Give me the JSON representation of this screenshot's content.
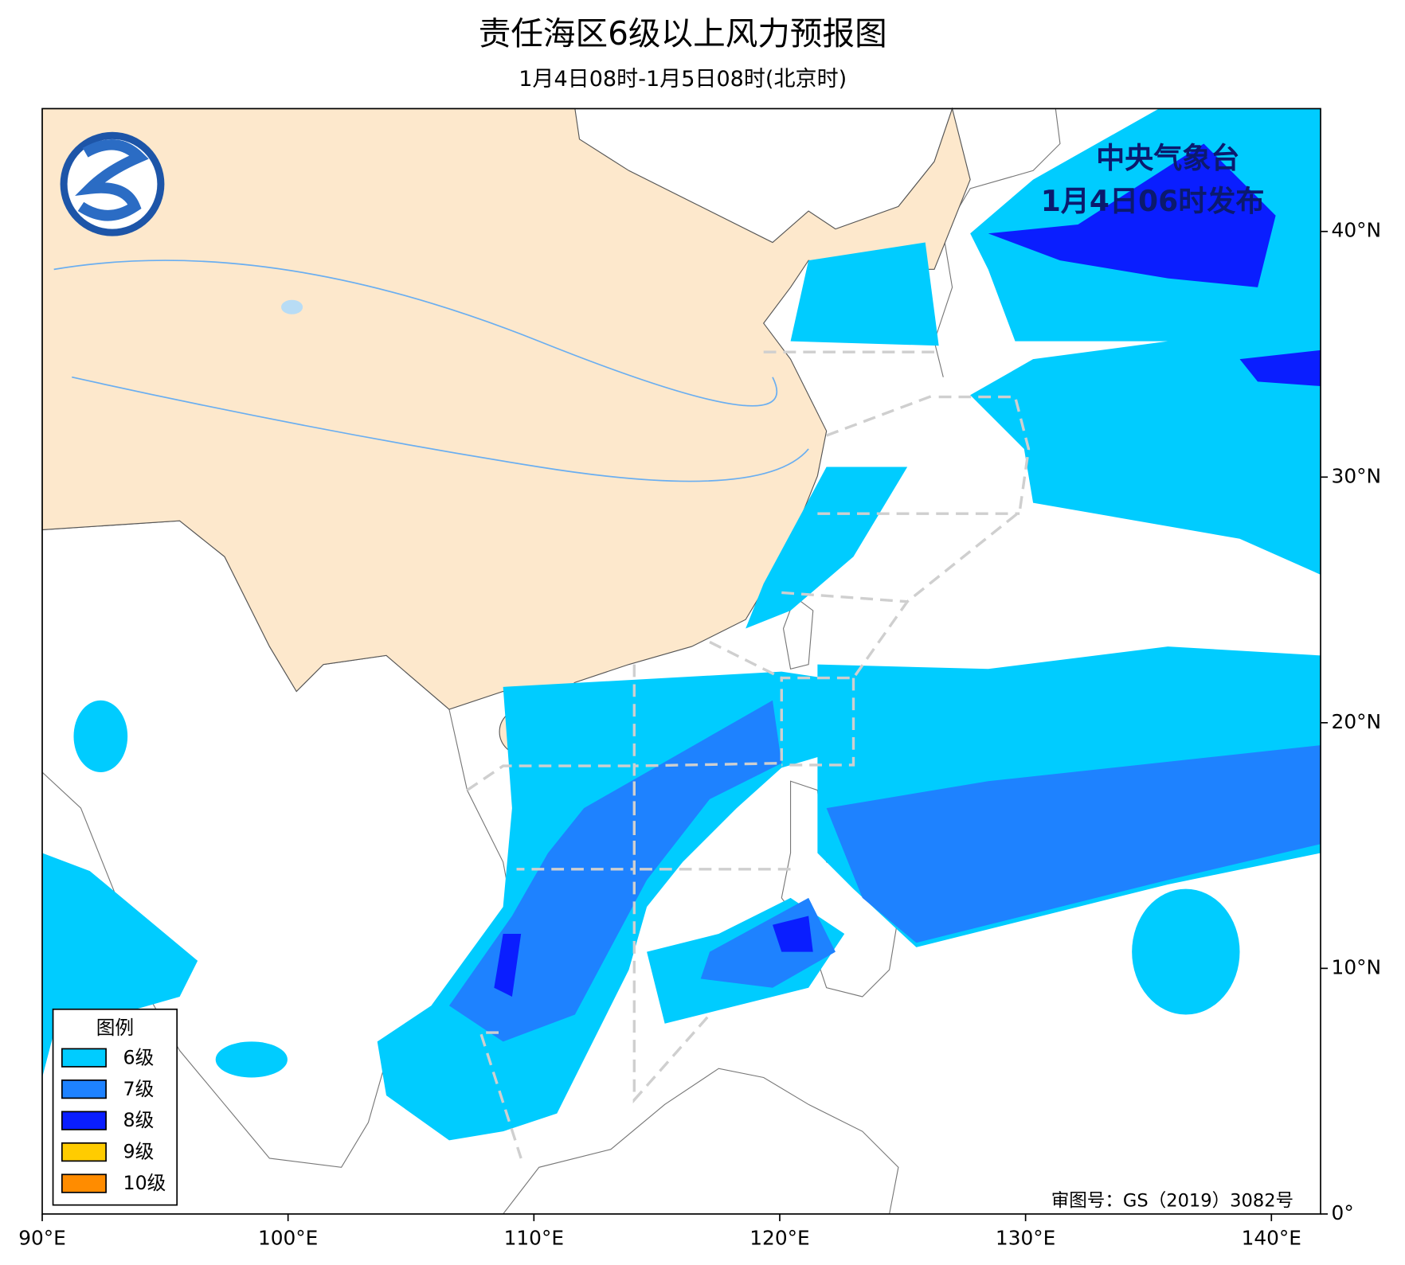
{
  "header": {
    "title": "责任海区6级以上风力预报图",
    "subtitle": "1月4日08时-1月5日08时(北京时)"
  },
  "issuer": {
    "name": "中央气象台",
    "time": "1月4日06时发布"
  },
  "legend": {
    "title": "图例",
    "items": [
      {
        "label": "6级",
        "color": "#00ccff"
      },
      {
        "label": "7级",
        "color": "#1e82ff"
      },
      {
        "label": "8级",
        "color": "#0a1eff"
      },
      {
        "label": "9级",
        "color": "#ffcc00"
      },
      {
        "label": "10级",
        "color": "#ff8c00"
      }
    ]
  },
  "map": {
    "lon_range": [
      90,
      142
    ],
    "lat_range": [
      0,
      45
    ],
    "lon_ticks": [
      {
        "value": 90,
        "label": "90°E"
      },
      {
        "value": 100,
        "label": "100°E"
      },
      {
        "value": 110,
        "label": "110°E"
      },
      {
        "value": 120,
        "label": "120°E"
      },
      {
        "value": 130,
        "label": "130°E"
      },
      {
        "value": 140,
        "label": "140°E"
      }
    ],
    "lat_ticks": [
      {
        "value": 0,
        "label": "0°"
      },
      {
        "value": 10,
        "label": "10°N"
      },
      {
        "value": 20,
        "label": "20°N"
      },
      {
        "value": 30,
        "label": "30°N"
      },
      {
        "value": 40,
        "label": "40°N"
      }
    ]
  },
  "approval": "审图号：GS（2019）3082号"
}
